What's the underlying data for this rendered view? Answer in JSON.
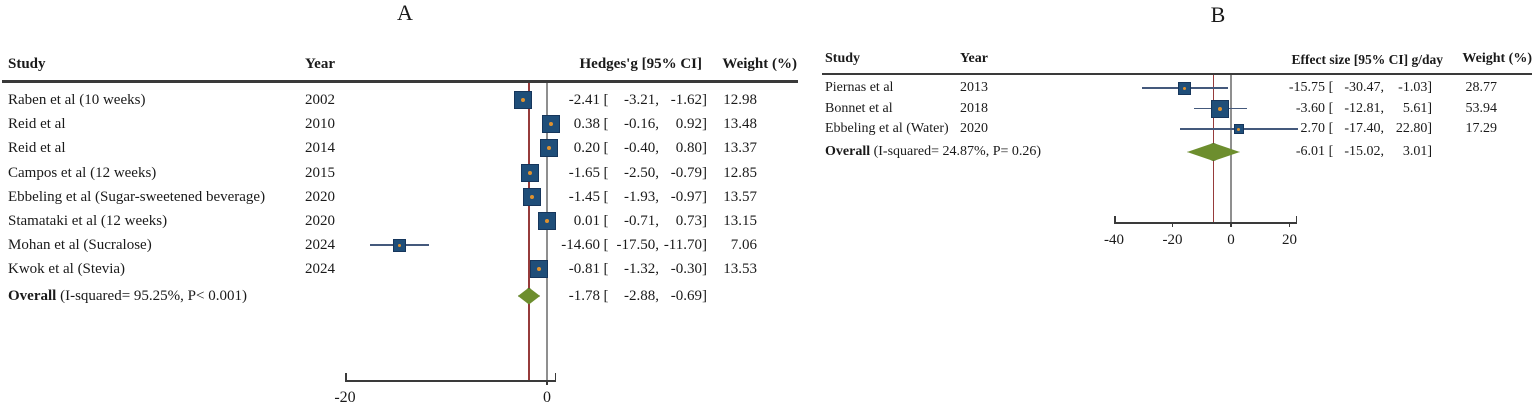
{
  "figure_background": "#ffffff",
  "colors": {
    "text": "#1a1a1a",
    "header_rule": "#3a3a3a",
    "axis": "#3a3a3a",
    "square_fill": "#1f4e79",
    "square_border": "#16365c",
    "square_center_dot": "#e0922f",
    "diamond_fill": "#6d8e2e",
    "diamond_border": "#4f6b1e",
    "pooled_line": "#963b3b",
    "zero_line": "#8f8f8f",
    "whisker": "#44597c"
  },
  "chart_data": [
    {
      "type": "forest",
      "panel_label": "A",
      "columns": {
        "study": "Study",
        "year": "Year",
        "effect": "Hedges'g [95% CI]",
        "weight": "Weight (%)"
      },
      "studies": [
        {
          "study": "Raben et al (10 weeks)",
          "year": "2002",
          "est": -2.41,
          "lo": -3.21,
          "hi": -1.62,
          "weight": 12.98
        },
        {
          "study": "Reid et al",
          "year": "2010",
          "est": 0.38,
          "lo": -0.16,
          "hi": 0.92,
          "weight": 13.48
        },
        {
          "study": "Reid et al",
          "year": "2014",
          "est": 0.2,
          "lo": -0.4,
          "hi": 0.8,
          "weight": 13.37
        },
        {
          "study": "Campos et al (12 weeks)",
          "year": "2015",
          "est": -1.65,
          "lo": -2.5,
          "hi": -0.79,
          "weight": 12.85
        },
        {
          "study": "Ebbeling et al (Sugar-sweetened beverage)",
          "year": "2020",
          "est": -1.45,
          "lo": -1.93,
          "hi": -0.97,
          "weight": 13.57
        },
        {
          "study": "Stamataki et al (12 weeks)",
          "year": "2020",
          "est": 0.01,
          "lo": -0.71,
          "hi": 0.73,
          "weight": 13.15
        },
        {
          "study": "Mohan et al (Sucralose)",
          "year": "2024",
          "est": -14.6,
          "lo": -17.5,
          "hi": -11.7,
          "weight": 7.06
        },
        {
          "study": "Kwok et al (Stevia)",
          "year": "2024",
          "est": -0.81,
          "lo": -1.32,
          "hi": -0.3,
          "weight": 13.53
        }
      ],
      "overall": {
        "label_bold": "Overall",
        "label_rest": " (I-squared= 95.25%, P< 0.001)",
        "est": -1.78,
        "lo": -2.88,
        "hi": -0.69
      },
      "x_ticks": [
        -20,
        0
      ],
      "x_range": [
        -20,
        0.9
      ],
      "zero_line": 0,
      "pooled_line": -1.78,
      "grid": false,
      "legend": false
    },
    {
      "type": "forest",
      "panel_label": "B",
      "columns": {
        "study": "Study",
        "year": "Year",
        "effect": "Effect size [95% CI] g/day",
        "weight": "Weight (%)"
      },
      "studies": [
        {
          "study": "Piernas et al",
          "year": "2013",
          "est": -15.75,
          "lo": -30.47,
          "hi": -1.03,
          "weight": 28.77
        },
        {
          "study": "Bonnet et al",
          "year": "2018",
          "est": -3.6,
          "lo": -12.81,
          "hi": 5.61,
          "weight": 53.94
        },
        {
          "study": "Ebbeling et al (Water)",
          "year": "2020",
          "est": 2.7,
          "lo": -17.4,
          "hi": 22.8,
          "weight": 17.29
        }
      ],
      "overall": {
        "label_bold": "Overall",
        "label_rest": " (I-squared= 24.87%, P= 0.26)",
        "est": -6.01,
        "lo": -15.02,
        "hi": 3.01
      },
      "x_ticks": [
        -40,
        -20,
        0,
        20
      ],
      "x_range": [
        -40,
        22.6
      ],
      "zero_line": 0,
      "pooled_line": -6.01,
      "grid": false,
      "legend": false
    }
  ]
}
